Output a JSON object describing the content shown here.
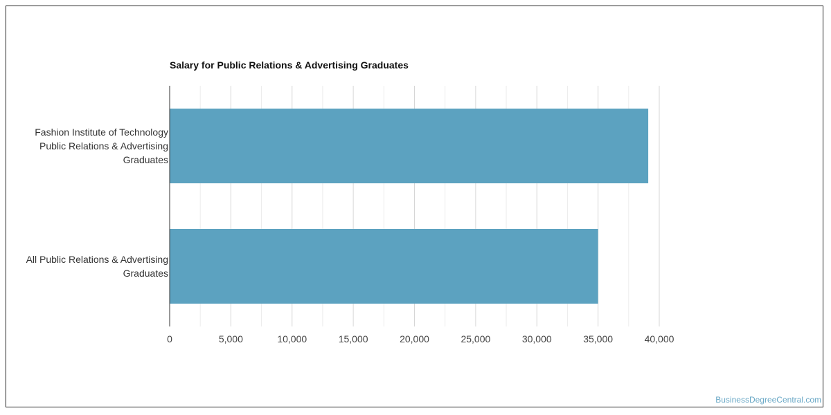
{
  "chart_data": {
    "type": "bar",
    "orientation": "horizontal",
    "title": "Salary for Public Relations & Advertising Graduates",
    "xlabel": "",
    "ylabel": "",
    "categories": [
      [
        "Fashion Institute of Technology",
        "Public Relations & Advertising",
        "Graduates"
      ],
      [
        "All Public Relations & Advertising",
        "Graduates"
      ]
    ],
    "values": [
      39100,
      35000
    ],
    "xlim": [
      0,
      40000
    ],
    "ticks": [
      0,
      5000,
      10000,
      15000,
      20000,
      25000,
      30000,
      35000,
      40000
    ],
    "tick_labels": [
      "0",
      "5,000",
      "10,000",
      "15,000",
      "20,000",
      "25,000",
      "30,000",
      "35,000",
      "40,000"
    ],
    "grid": true,
    "legend": "none",
    "bar_color": "#5ca2c0"
  },
  "footer": {
    "source": "BusinessDegreeCentral.com"
  }
}
